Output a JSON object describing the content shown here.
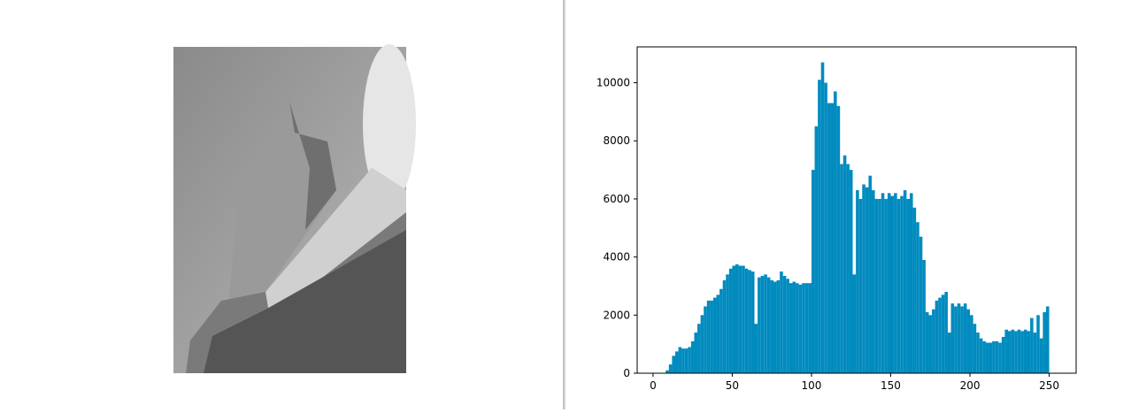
{
  "chart_data": {
    "type": "histogram",
    "color": "#008bbf",
    "bins": [
      0,
      2,
      4,
      6,
      8,
      10,
      12,
      14,
      16,
      18,
      20,
      22,
      24,
      26,
      28,
      30,
      32,
      34,
      36,
      38,
      40,
      42,
      44,
      46,
      48,
      50,
      52,
      54,
      56,
      58,
      60,
      62,
      64,
      66,
      68,
      70,
      72,
      74,
      76,
      78,
      80,
      82,
      84,
      86,
      88,
      90,
      92,
      94,
      96,
      98,
      100,
      102,
      104,
      106,
      108,
      110,
      112,
      114,
      116,
      118,
      120,
      122,
      124,
      126,
      128,
      130,
      132,
      134,
      136,
      138,
      140,
      142,
      144,
      146,
      148,
      150,
      152,
      154,
      156,
      158,
      160,
      162,
      164,
      166,
      168,
      170,
      172,
      174,
      176,
      178,
      180,
      182,
      184,
      186,
      188,
      190,
      192,
      194,
      196,
      198,
      200,
      202,
      204,
      206,
      208,
      210,
      212,
      214,
      216,
      218,
      220,
      222,
      224,
      226,
      228,
      230,
      232,
      234,
      236,
      238,
      240,
      242,
      244,
      246,
      248,
      250,
      252,
      254,
      256
    ],
    "values": [
      0,
      0,
      0,
      0,
      100,
      300,
      600,
      750,
      900,
      850,
      850,
      900,
      1100,
      1400,
      1700,
      2000,
      2300,
      2500,
      2500,
      2600,
      2700,
      2900,
      3200,
      3400,
      3600,
      3700,
      3750,
      3700,
      3700,
      3600,
      3550,
      3500,
      1700,
      3300,
      3350,
      3400,
      3300,
      3200,
      3150,
      3200,
      3500,
      3350,
      3250,
      3100,
      3150,
      3100,
      3050,
      3100,
      3100,
      3100,
      7000,
      8500,
      10100,
      10700,
      10000,
      9300,
      9300,
      9700,
      9200,
      7200,
      7500,
      7200,
      7000,
      3400,
      6300,
      6000,
      6500,
      6400,
      6800,
      6300,
      6000,
      6000,
      6200,
      6000,
      6200,
      6100,
      6200,
      6000,
      6100,
      6300,
      6000,
      6200,
      5700,
      5200,
      4700,
      3900,
      2100,
      2000,
      2200,
      2500,
      2600,
      2700,
      2800,
      1400,
      2400,
      2300,
      2400,
      2300,
      2400,
      2200,
      2000,
      1700,
      1400,
      1200,
      1100,
      1050,
      1050,
      1100,
      1100,
      1050,
      1250,
      1500,
      1450,
      1500,
      1450,
      1500,
      1450,
      1500,
      1450,
      1900,
      1400,
      2000,
      1200,
      2100,
      2300,
      0,
      0,
      0
    ],
    "xlim": [
      -10,
      267
    ],
    "ylim": [
      0,
      11235
    ],
    "xticks": [
      0,
      50,
      100,
      150,
      200,
      250
    ],
    "yticks": [
      0,
      2000,
      4000,
      6000,
      8000,
      10000
    ]
  }
}
